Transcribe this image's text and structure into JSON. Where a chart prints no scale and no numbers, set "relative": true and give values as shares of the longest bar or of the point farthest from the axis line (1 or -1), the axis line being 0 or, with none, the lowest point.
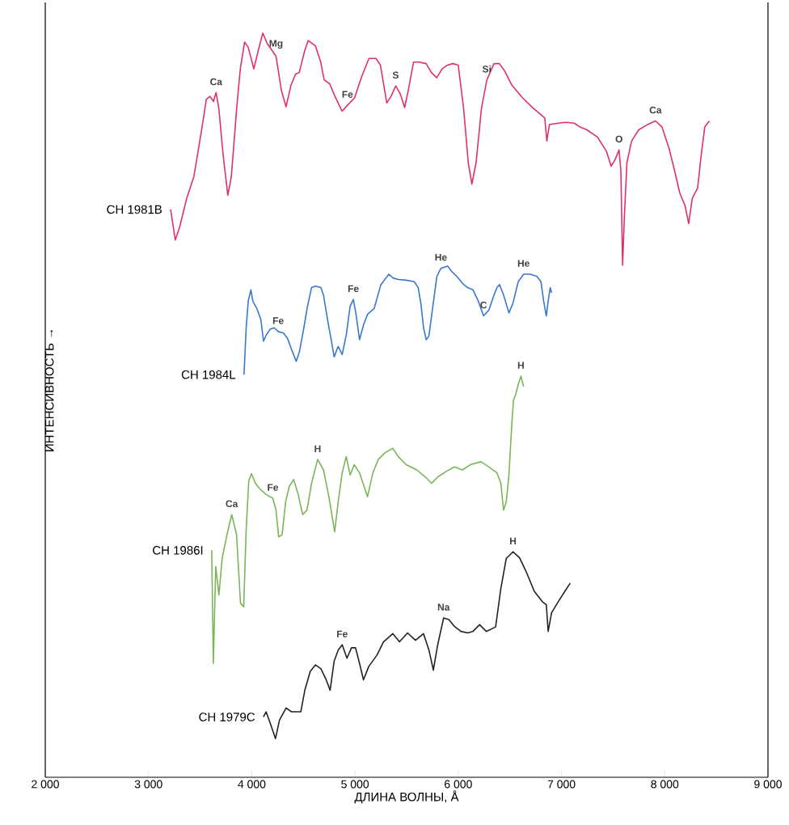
{
  "chart_data": {
    "type": "line",
    "relative": true,
    "xlabel": "ДЛИНА ВОЛНЫ, Å",
    "ylabel": "ИНТЕНСИВНОСТЬ →",
    "grid": false,
    "marker": "none",
    "line_style": "solid",
    "xlim": [
      2000,
      9000
    ],
    "xticks": [
      {
        "value": 2000,
        "label": "2 000"
      },
      {
        "value": 3000,
        "label": "3 000"
      },
      {
        "value": 4000,
        "label": "4 000"
      },
      {
        "value": 5000,
        "label": "5 000"
      },
      {
        "value": 6000,
        "label": "6 000"
      },
      {
        "value": 7000,
        "label": "7 000"
      },
      {
        "value": 8000,
        "label": "8 000"
      },
      {
        "value": 9000,
        "label": "9 000"
      }
    ],
    "series": [
      {
        "name": "СН 1981B",
        "color": "#e0306a",
        "x": [
          3214,
          3259,
          3301,
          3370,
          3439,
          3491,
          3536,
          3560,
          3595,
          3629,
          3654,
          3681,
          3723,
          3768,
          3802,
          3854,
          3889,
          3931,
          3965,
          4020,
          4062,
          4107,
          4149,
          4200,
          4235,
          4287,
          4332,
          4380,
          4425,
          4460,
          4512,
          4547,
          4616,
          4668,
          4702,
          4754,
          4806,
          4875,
          4927,
          4996,
          5066,
          5135,
          5204,
          5246,
          5308,
          5349,
          5394,
          5439,
          5481,
          5516,
          5567,
          5619,
          5689,
          5740,
          5792,
          5844,
          5896,
          5948,
          6000,
          6052,
          6097,
          6132,
          6173,
          6225,
          6277,
          6346,
          6398,
          6450,
          6519,
          6623,
          6727,
          6813,
          6838,
          6858,
          6883,
          6969,
          7038,
          7125,
          7177,
          7246,
          7350,
          7436,
          7481,
          7523,
          7557,
          7575,
          7592,
          7609,
          7634,
          7679,
          7748,
          7834,
          7910,
          7973,
          8042,
          8094,
          8146,
          8197,
          8232,
          8267,
          8319,
          8353,
          8388,
          8433
        ],
        "values": [
          0.763,
          0.722,
          0.739,
          0.778,
          0.807,
          0.85,
          0.889,
          0.911,
          0.915,
          0.908,
          0.92,
          0.899,
          0.836,
          0.782,
          0.807,
          0.899,
          0.952,
          0.988,
          0.981,
          0.952,
          0.976,
          1,
          0.986,
          0.976,
          0.969,
          0.923,
          0.901,
          0.93,
          0.945,
          0.947,
          0.976,
          0.99,
          0.983,
          0.961,
          0.937,
          0.932,
          0.915,
          0.895,
          0.903,
          0.913,
          0.942,
          0.966,
          0.966,
          0.957,
          0.906,
          0.915,
          0.929,
          0.918,
          0.9,
          0.923,
          0.961,
          0.961,
          0.959,
          0.947,
          0.94,
          0.952,
          0.957,
          0.959,
          0.957,
          0.899,
          0.826,
          0.797,
          0.826,
          0.899,
          0.937,
          0.959,
          0.959,
          0.949,
          0.93,
          0.913,
          0.899,
          0.889,
          0.886,
          0.855,
          0.877,
          0.879,
          0.88,
          0.879,
          0.874,
          0.87,
          0.86,
          0.841,
          0.821,
          0.831,
          0.843,
          0.816,
          0.688,
          0.753,
          0.826,
          0.855,
          0.87,
          0.877,
          0.882,
          0.874,
          0.845,
          0.816,
          0.785,
          0.768,
          0.744,
          0.778,
          0.792,
          0.836,
          0.874,
          0.882
        ]
      },
      {
        "name": "СН 1984L",
        "color": "#3a78d0",
        "x": [
          3925,
          3946,
          3966,
          3992,
          4010,
          4049,
          4088,
          4114,
          4139,
          4178,
          4217,
          4256,
          4307,
          4346,
          4385,
          4431,
          4462,
          4501,
          4540,
          4579,
          4617,
          4669,
          4695,
          4734,
          4772,
          4798,
          4837,
          4876,
          4915,
          4953,
          4984,
          5010,
          5044,
          5083,
          5121,
          5186,
          5251,
          5289,
          5328,
          5367,
          5418,
          5496,
          5574,
          5612,
          5638,
          5664,
          5690,
          5716,
          5754,
          5793,
          5832,
          5897,
          5935,
          5987,
          6039,
          6090,
          6142,
          6194,
          6245,
          6297,
          6336,
          6375,
          6400,
          6439,
          6491,
          6530,
          6581,
          6633,
          6698,
          6762,
          6801,
          6827,
          6853,
          6871,
          6891,
          6904
        ],
        "values": [
          0.541,
          0.604,
          0.64,
          0.655,
          0.64,
          0.63,
          0.615,
          0.586,
          0.594,
          0.602,
          0.604,
          0.599,
          0.597,
          0.59,
          0.575,
          0.559,
          0.572,
          0.601,
          0.633,
          0.658,
          0.66,
          0.658,
          0.648,
          0.615,
          0.586,
          0.565,
          0.579,
          0.568,
          0.594,
          0.633,
          0.642,
          0.622,
          0.588,
          0.608,
          0.622,
          0.63,
          0.662,
          0.669,
          0.676,
          0.671,
          0.669,
          0.668,
          0.666,
          0.658,
          0.637,
          0.604,
          0.588,
          0.593,
          0.633,
          0.673,
          0.684,
          0.687,
          0.68,
          0.673,
          0.664,
          0.658,
          0.655,
          0.64,
          0.62,
          0.628,
          0.644,
          0.658,
          0.662,
          0.648,
          0.624,
          0.637,
          0.666,
          0.676,
          0.676,
          0.673,
          0.666,
          0.64,
          0.62,
          0.64,
          0.658,
          0.651
        ]
      },
      {
        "name": "СН 1986I",
        "color": "#7ab55c",
        "x": [
          3612,
          3628,
          3651,
          3682,
          3713,
          3760,
          3806,
          3853,
          3891,
          3922,
          3946,
          3971,
          3997,
          4036,
          4075,
          4139,
          4204,
          4235,
          4261,
          4294,
          4328,
          4364,
          4406,
          4450,
          4493,
          4535,
          4579,
          4638,
          4695,
          4747,
          4803,
          4837,
          4876,
          4915,
          4953,
          4992,
          5044,
          5121,
          5173,
          5225,
          5289,
          5367,
          5418,
          5496,
          5599,
          5677,
          5741,
          5806,
          5884,
          5961,
          6039,
          6116,
          6220,
          6297,
          6375,
          6413,
          6439,
          6465,
          6491,
          6517,
          6535,
          6556,
          6581,
          6607,
          6633
        ],
        "values": [
          0.305,
          0.153,
          0.283,
          0.245,
          0.294,
          0.326,
          0.353,
          0.326,
          0.234,
          0.229,
          0.333,
          0.398,
          0.408,
          0.395,
          0.388,
          0.38,
          0.375,
          0.359,
          0.323,
          0.326,
          0.37,
          0.391,
          0.4,
          0.38,
          0.353,
          0.359,
          0.395,
          0.427,
          0.413,
          0.377,
          0.33,
          0.37,
          0.409,
          0.431,
          0.406,
          0.42,
          0.409,
          0.377,
          0.409,
          0.427,
          0.436,
          0.442,
          0.431,
          0.42,
          0.413,
          0.404,
          0.395,
          0.404,
          0.411,
          0.417,
          0.413,
          0.42,
          0.424,
          0.417,
          0.409,
          0.395,
          0.359,
          0.37,
          0.406,
          0.471,
          0.507,
          0.514,
          0.528,
          0.539,
          0.525
        ]
      },
      {
        "name": "СН 1979C",
        "color": "#222222",
        "x": [
          4113,
          4139,
          4178,
          4230,
          4269,
          4333,
          4385,
          4475,
          4514,
          4566,
          4617,
          4669,
          4721,
          4759,
          4798,
          4837,
          4876,
          4922,
          4966,
          5005,
          5044,
          5082,
          5134,
          5212,
          5276,
          5367,
          5431,
          5509,
          5586,
          5664,
          5716,
          5759,
          5801,
          5858,
          5909,
          5961,
          6026,
          6090,
          6142,
          6207,
          6271,
          6362,
          6413,
          6465,
          6530,
          6594,
          6659,
          6736,
          6814,
          6853,
          6871,
          6904,
          6969,
          7033,
          7085
        ],
        "values": [
          0.081,
          0.088,
          0.073,
          0.052,
          0.077,
          0.093,
          0.088,
          0.088,
          0.117,
          0.142,
          0.151,
          0.146,
          0.131,
          0.117,
          0.156,
          0.171,
          0.178,
          0.16,
          0.174,
          0.174,
          0.153,
          0.131,
          0.149,
          0.164,
          0.182,
          0.193,
          0.182,
          0.194,
          0.184,
          0.193,
          0.171,
          0.144,
          0.178,
          0.214,
          0.212,
          0.203,
          0.196,
          0.194,
          0.196,
          0.205,
          0.196,
          0.202,
          0.254,
          0.294,
          0.303,
          0.295,
          0.276,
          0.25,
          0.236,
          0.232,
          0.196,
          0.221,
          0.236,
          0.25,
          0.261
        ]
      }
    ],
    "annotations": [
      {
        "text": "Ca",
        "x": 3654,
        "y": 0.92
      },
      {
        "text": "Mg",
        "x": 4235,
        "y": 0.969
      },
      {
        "text": "Fe",
        "x": 4927,
        "y": 0.903
      },
      {
        "text": "S",
        "x": 5394,
        "y": 0.929
      },
      {
        "text": "Si",
        "x": 6277,
        "y": 0.937
      },
      {
        "text": "O",
        "x": 7557,
        "y": 0.843
      },
      {
        "text": "Ca",
        "x": 7910,
        "y": 0.882
      },
      {
        "text": "Fe",
        "x": 4256,
        "y": 0.599
      },
      {
        "text": "Fe",
        "x": 4984,
        "y": 0.642
      },
      {
        "text": "He",
        "x": 5832,
        "y": 0.684
      },
      {
        "text": "C",
        "x": 6245,
        "y": 0.62
      },
      {
        "text": "He",
        "x": 6633,
        "y": 0.676
      },
      {
        "text": "Ca",
        "x": 3806,
        "y": 0.353
      },
      {
        "text": "Fe",
        "x": 4204,
        "y": 0.375
      },
      {
        "text": "H",
        "x": 4638,
        "y": 0.427
      },
      {
        "text": "H",
        "x": 6607,
        "y": 0.539
      },
      {
        "text": "Fe",
        "x": 4876,
        "y": 0.178
      },
      {
        "text": "Na",
        "x": 5858,
        "y": 0.214
      },
      {
        "text": "H",
        "x": 6530,
        "y": 0.303
      }
    ]
  }
}
